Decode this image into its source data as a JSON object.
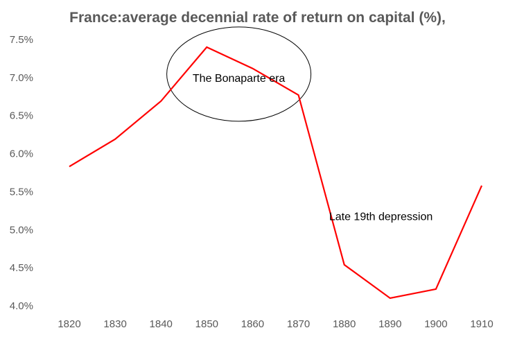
{
  "chart_data": {
    "type": "line",
    "title": "France:average decennial rate of return on capital (%),",
    "x": [
      1820,
      1830,
      1840,
      1850,
      1860,
      1870,
      1880,
      1890,
      1900,
      1910
    ],
    "series": [
      {
        "values": [
          5.83,
          6.19,
          6.69,
          7.4,
          7.12,
          6.77,
          4.54,
          4.1,
          4.22,
          5.58
        ],
        "color": "#ff0000"
      }
    ],
    "ylim": [
      4.0,
      7.5
    ],
    "y_ticks": [
      "4.0%",
      "4.5%",
      "5.0%",
      "5.5%",
      "6.0%",
      "6.5%",
      "7.0%",
      "7.5%"
    ],
    "x_ticks": [
      "1820",
      "1830",
      "1840",
      "1850",
      "1860",
      "1870",
      "1880",
      "1890",
      "1900",
      "1910"
    ],
    "grid": false,
    "legend": "none",
    "annotations": [
      {
        "text": "The Bonaparte era",
        "x": 1857,
        "y": 7.0,
        "shape": "ellipse"
      },
      {
        "text": "Late 19th depression",
        "x": 1888,
        "y": 5.18
      }
    ]
  }
}
